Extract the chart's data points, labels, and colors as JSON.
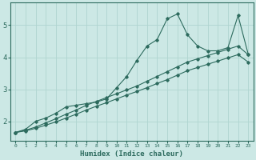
{
  "xlabel": "Humidex (Indice chaleur)",
  "x_values": [
    0,
    1,
    2,
    3,
    4,
    5,
    6,
    7,
    8,
    9,
    10,
    11,
    12,
    13,
    14,
    15,
    16,
    17,
    18,
    19,
    20,
    21,
    22,
    23
  ],
  "line1_y": [
    1.65,
    1.75,
    2.0,
    2.1,
    2.25,
    2.45,
    2.5,
    2.55,
    2.6,
    2.7,
    3.05,
    3.4,
    3.9,
    4.35,
    4.55,
    5.2,
    5.35,
    4.7,
    4.35,
    4.2,
    4.2,
    4.3,
    5.3,
    4.1
  ],
  "line2_y": [
    1.65,
    1.72,
    1.82,
    1.95,
    2.08,
    2.22,
    2.35,
    2.5,
    2.62,
    2.74,
    2.86,
    2.98,
    3.1,
    3.25,
    3.4,
    3.55,
    3.7,
    3.85,
    3.95,
    4.05,
    4.15,
    4.25,
    4.35,
    4.08
  ],
  "line3_y": [
    1.65,
    1.7,
    1.78,
    1.88,
    1.98,
    2.1,
    2.22,
    2.35,
    2.47,
    2.58,
    2.7,
    2.82,
    2.93,
    3.05,
    3.18,
    3.3,
    3.44,
    3.58,
    3.68,
    3.78,
    3.88,
    3.98,
    4.08,
    3.85
  ],
  "color": "#2d6b5e",
  "bg_color": "#cce8e5",
  "grid_color": "#afd4d0",
  "ylim": [
    1.4,
    5.7
  ],
  "yticks": [
    2,
    3,
    4,
    5
  ],
  "xlim": [
    -0.5,
    23.5
  ]
}
